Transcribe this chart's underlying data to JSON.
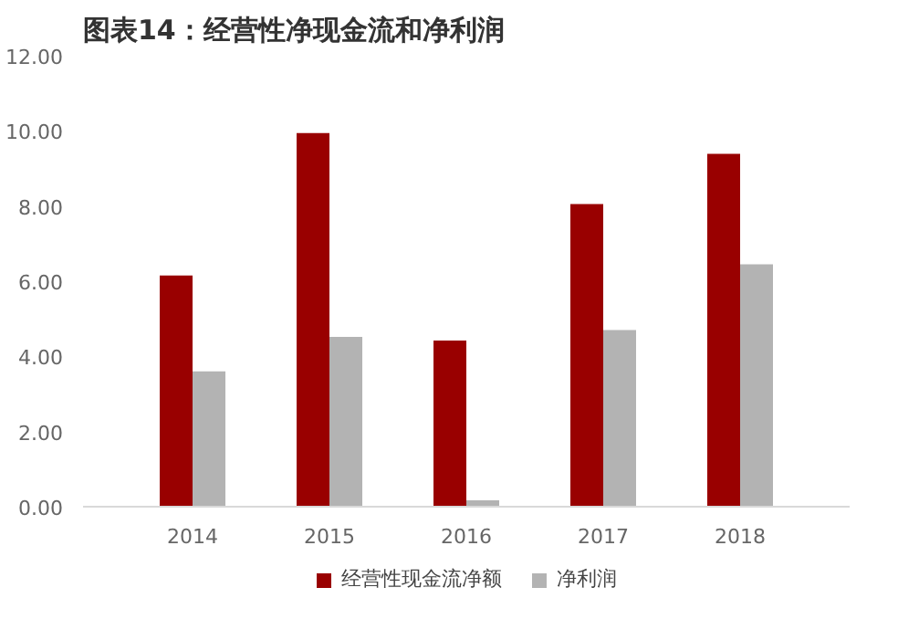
{
  "chart_data": {
    "type": "bar",
    "title": "图表14：经营性净现金流和净利润",
    "categories": [
      "2014",
      "2015",
      "2016",
      "2017",
      "2018"
    ],
    "series": [
      {
        "name": "经营性现金流净额",
        "color": "#990000",
        "values": [
          6.15,
          9.94,
          4.42,
          8.05,
          9.39
        ]
      },
      {
        "name": "净利润",
        "color": "#b3b3b3",
        "values": [
          3.6,
          4.52,
          0.17,
          4.7,
          6.45
        ]
      }
    ],
    "ylim": [
      0,
      12
    ],
    "yticks": [
      {
        "value": 0,
        "label": "0.00"
      },
      {
        "value": 2,
        "label": "2.00"
      },
      {
        "value": 4,
        "label": "4.00"
      },
      {
        "value": 6,
        "label": "6.00"
      },
      {
        "value": 8,
        "label": "8.00"
      },
      {
        "value": 10,
        "label": "10.00"
      },
      {
        "value": 12,
        "label": "12.00"
      }
    ],
    "legend": "bottom",
    "grid": false
  }
}
